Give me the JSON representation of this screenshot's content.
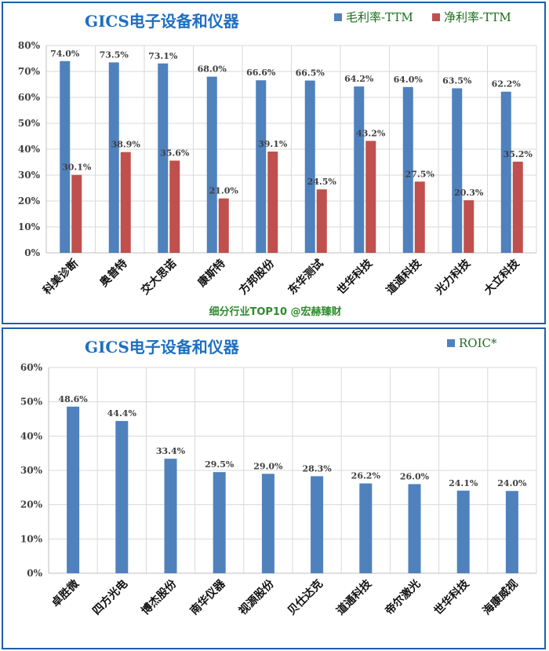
{
  "chart_data": [
    {
      "type": "bar",
      "title": "GICS电子设备和仪器",
      "categories": [
        "科美诊断",
        "奥普特",
        "交大思诺",
        "康斯特",
        "方邦股份",
        "东华测试",
        "世华科技",
        "道通科技",
        "光力科技",
        "大立科技"
      ],
      "series": [
        {
          "name": "毛利率-TTM",
          "values": [
            74.0,
            73.5,
            73.1,
            68.0,
            66.6,
            66.5,
            64.2,
            64.0,
            63.5,
            62.2
          ],
          "color": "#4f81bd"
        },
        {
          "name": "净利率-TTM",
          "values": [
            30.1,
            38.9,
            35.6,
            21.0,
            39.1,
            24.5,
            43.2,
            27.5,
            20.3,
            35.2
          ],
          "color": "#c0504d"
        }
      ],
      "ylim": [
        0,
        80
      ],
      "yticks": [
        "0%",
        "10%",
        "20%",
        "30%",
        "40%",
        "50%",
        "60%",
        "70%",
        "80%"
      ],
      "grid": true,
      "legend": "top-right",
      "footer": "细分行业TOP10 @宏赫臻财"
    },
    {
      "type": "bar",
      "title": "GICS电子设备和仪器",
      "categories": [
        "卓胜微",
        "四方光电",
        "博杰股份",
        "南华仪器",
        "视源股份",
        "贝仕达克",
        "道通科技",
        "帝尔激光",
        "世华科技",
        "海康威视"
      ],
      "series": [
        {
          "name": "ROIC*",
          "values": [
            48.6,
            44.4,
            33.4,
            29.5,
            29.0,
            28.3,
            26.2,
            26.0,
            24.1,
            24.0
          ],
          "color": "#4f81bd"
        }
      ],
      "ylim": [
        0,
        60
      ],
      "yticks": [
        "0%",
        "10%",
        "20%",
        "30%",
        "40%",
        "50%",
        "60%"
      ],
      "grid": true,
      "legend": "top-right"
    }
  ]
}
